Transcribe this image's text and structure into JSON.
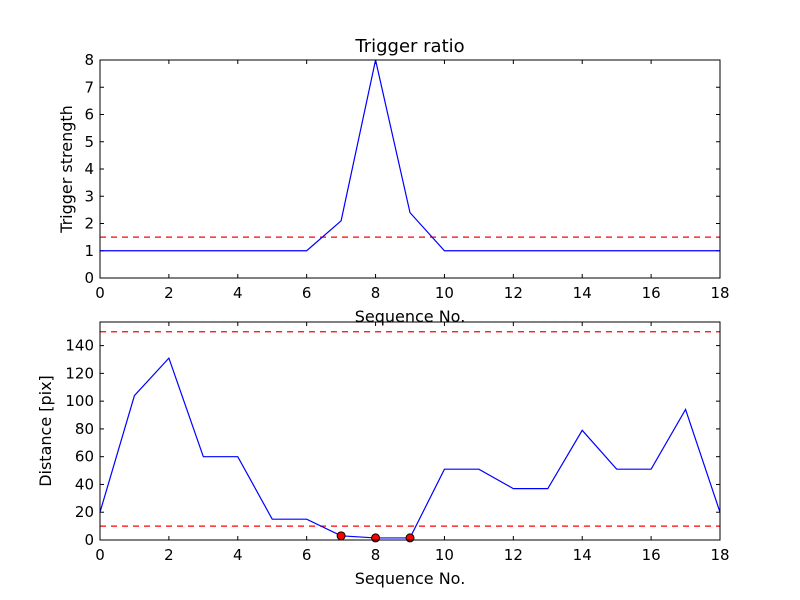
{
  "chart_data": [
    {
      "type": "line",
      "title": "Trigger ratio",
      "xlabel": "Sequence No.",
      "ylabel": "Trigger strength",
      "xlim": [
        0,
        18
      ],
      "ylim": [
        0,
        8
      ],
      "xticks": [
        0,
        2,
        4,
        6,
        8,
        10,
        12,
        14,
        16,
        18
      ],
      "yticks": [
        0,
        1,
        2,
        3,
        4,
        5,
        6,
        7,
        8
      ],
      "grid": false,
      "series": [
        {
          "x": [
            0,
            1,
            2,
            3,
            4,
            5,
            6,
            7,
            8,
            9,
            10,
            11,
            12,
            13,
            14,
            15,
            16,
            17,
            18
          ],
          "y": [
            1,
            1,
            1,
            1,
            1,
            1,
            1,
            2.1,
            8,
            2.4,
            1,
            1,
            1,
            1,
            1,
            1,
            1,
            1,
            1
          ],
          "color": "#0000ff"
        }
      ],
      "reference_lines": [
        {
          "y": 1.5,
          "color": "#ff0000",
          "style": "dashed"
        }
      ],
      "markers": []
    },
    {
      "type": "line",
      "title": "",
      "xlabel": "Sequence No.",
      "ylabel": "Distance [pix]",
      "xlim": [
        0,
        18
      ],
      "ylim": [
        0,
        157
      ],
      "xticks": [
        0,
        2,
        4,
        6,
        8,
        10,
        12,
        14,
        16,
        18
      ],
      "yticks": [
        0,
        20,
        40,
        60,
        80,
        100,
        120,
        140
      ],
      "grid": false,
      "series": [
        {
          "x": [
            0,
            1,
            2,
            3,
            4,
            5,
            6,
            7,
            8,
            9,
            10,
            11,
            12,
            13,
            14,
            15,
            16,
            17,
            18
          ],
          "y": [
            20,
            104,
            131,
            60,
            60,
            15,
            15,
            3,
            1.5,
            1.5,
            51,
            51,
            37,
            37,
            79,
            51,
            51,
            94,
            20
          ],
          "color": "#0000ff"
        }
      ],
      "reference_lines": [
        {
          "y": 150,
          "color": "#ff0000",
          "style": "dashed"
        },
        {
          "y": 10,
          "color": "#ff0000",
          "style": "dashed"
        }
      ],
      "markers": [
        {
          "x": 7,
          "y": 3,
          "color": "#ff0000"
        },
        {
          "x": 8,
          "y": 1.5,
          "color": "#ff0000"
        },
        {
          "x": 9,
          "y": 1.5,
          "color": "#ff0000"
        }
      ]
    }
  ]
}
